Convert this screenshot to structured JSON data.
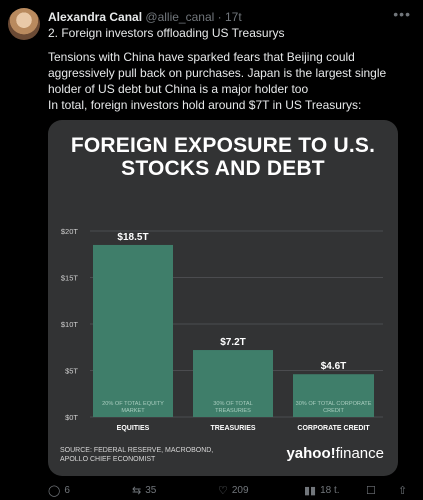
{
  "tweet": {
    "author_name": "Alexandra Canal",
    "handle": "@allie_canal",
    "time": "17t",
    "line1": "2. Foreign investors offloading US Treasurys",
    "line2": "Tensions with China have sparked fears that Beijing could aggressively pull back on purchases. Japan is the largest single holder of US debt but China is a major holder too",
    "line3": "In total, foreign investors hold around $7T in US Treasurys:"
  },
  "actions": {
    "replies": "6",
    "reposts": "35",
    "likes": "209",
    "views": "18 t."
  },
  "icons": {
    "more": "more-icon",
    "reply": "reply-icon",
    "repost": "repost-icon",
    "like": "like-icon",
    "views": "views-icon",
    "bookmark": "bookmark-icon",
    "share": "share-icon"
  },
  "chart_data": {
    "type": "bar",
    "title": "FOREIGN EXPOSURE TO U.S. STOCKS AND DEBT",
    "categories": [
      "EQUITIES",
      "TREASURIES",
      "CORPORATE CREDIT"
    ],
    "values": [
      18.5,
      7.2,
      4.6
    ],
    "value_labels": [
      "$18.5T",
      "$7.2T",
      "$4.6T"
    ],
    "bar_notes": [
      "20% OF TOTAL EQUITY MARKET",
      "30% OF TOTAL TREASURIES",
      "30% OF TOTAL CORPORATE CREDIT"
    ],
    "y_ticks": [
      0,
      5,
      10,
      15,
      20
    ],
    "y_tick_labels": [
      "$0T",
      "$5T",
      "$10T",
      "$15T",
      "$20T"
    ],
    "ylim": [
      0,
      20
    ],
    "grid": true,
    "bar_color": "#3f7e6a",
    "source": "SOURCE: FEDERAL RESERVE, MACROBOND, APOLLO CHIEF ECONOMIST",
    "logo_brand": "yahoo!",
    "logo_suffix": "finance"
  }
}
